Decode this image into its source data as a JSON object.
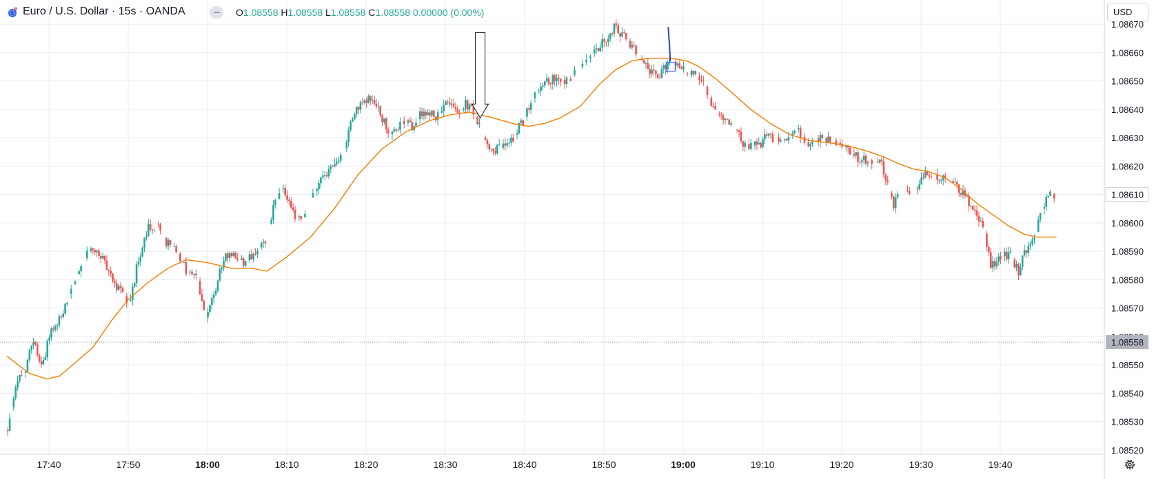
{
  "header": {
    "symbol_title": "Euro / U.S. Dollar · 15s · OANDA",
    "ohlc": {
      "o_key": "O",
      "o": "1.08558",
      "h_key": "H",
      "h": "1.08558",
      "l_key": "L",
      "l": "1.08558",
      "c_key": "C",
      "c": "1.08558",
      "change": "0.00000 (0.00%)"
    }
  },
  "toolbar": {
    "currency_label": "USD",
    "settings_icon": "gear-icon"
  },
  "colors": {
    "up": "#26a69a",
    "down": "#ef5350",
    "ma": "#f57c00",
    "grid": "#e8ebf1",
    "last_price_bg": "#b2b5be",
    "annotation_blue": "#2f3ed6"
  },
  "chart_data": {
    "type": "candlestick",
    "ylim": [
      1.085185,
      1.086785
    ],
    "y_ticks": [
      "1.08520",
      "1.08530",
      "1.08540",
      "1.08550",
      "1.08560",
      "1.08570",
      "1.08580",
      "1.08590",
      "1.08600",
      "1.08610",
      "1.08620",
      "1.08630",
      "1.08640",
      "1.08650",
      "1.08660",
      "1.08670"
    ],
    "x_ticks": [
      {
        "label": "17:40",
        "minute": -20,
        "bold": false
      },
      {
        "label": "17:50",
        "minute": -10,
        "bold": false
      },
      {
        "label": "18:00",
        "minute": 0,
        "bold": true
      },
      {
        "label": "18:10",
        "minute": 10,
        "bold": false
      },
      {
        "label": "18:20",
        "minute": 20,
        "bold": false
      },
      {
        "label": "18:30",
        "minute": 30,
        "bold": false
      },
      {
        "label": "18:40",
        "minute": 40,
        "bold": false
      },
      {
        "label": "18:50",
        "minute": 50,
        "bold": false
      },
      {
        "label": "19:00",
        "minute": 60,
        "bold": true
      },
      {
        "label": "19:10",
        "minute": 70,
        "bold": false
      },
      {
        "label": "19:20",
        "minute": 80,
        "bold": false
      },
      {
        "label": "19:30",
        "minute": 90,
        "bold": false
      },
      {
        "label": "19:40",
        "minute": 100,
        "bold": false
      }
    ],
    "xlim_minutes": [
      -25.3,
      107.1
    ],
    "price_path": [
      [
        -25.2,
        1.08527
      ],
      [
        -24.2,
        1.08543
      ],
      [
        -23.0,
        1.08548
      ],
      [
        -22.0,
        1.08558
      ],
      [
        -20.8,
        1.08549
      ],
      [
        -19.8,
        1.08562
      ],
      [
        -18.5,
        1.08567
      ],
      [
        -17.6,
        1.08574
      ],
      [
        -16.3,
        1.08583
      ],
      [
        -15.0,
        1.0859
      ],
      [
        -13.4,
        1.08588
      ],
      [
        -12.3,
        1.08582
      ],
      [
        -11.0,
        1.08576
      ],
      [
        -9.8,
        1.08572
      ],
      [
        -8.7,
        1.08587
      ],
      [
        -7.5,
        1.08598
      ],
      [
        -6.3,
        1.086
      ],
      [
        -5.2,
        1.08593
      ],
      [
        -4.0,
        1.08591
      ],
      [
        -2.7,
        1.08583
      ],
      [
        -1.3,
        1.08581
      ],
      [
        -0.3,
        1.08566
      ],
      [
        0.8,
        1.08574
      ],
      [
        2.0,
        1.08587
      ],
      [
        3.3,
        1.0859
      ],
      [
        4.5,
        1.08585
      ],
      [
        6.0,
        1.0859
      ],
      [
        7.2,
        1.08593
      ],
      [
        8.2,
        1.08604
      ],
      [
        9.3,
        1.08612
      ],
      [
        10.6,
        1.08605
      ],
      [
        11.8,
        1.086
      ],
      [
        12.8,
        1.08608
      ],
      [
        14.2,
        1.08614
      ],
      [
        15.7,
        1.08621
      ],
      [
        17.2,
        1.08625
      ],
      [
        18.2,
        1.08637
      ],
      [
        19.4,
        1.08642
      ],
      [
        20.8,
        1.08645
      ],
      [
        22.0,
        1.08637
      ],
      [
        23.0,
        1.08631
      ],
      [
        24.5,
        1.08636
      ],
      [
        26.0,
        1.08634
      ],
      [
        27.3,
        1.0864
      ],
      [
        28.8,
        1.08637
      ],
      [
        30.2,
        1.08642
      ],
      [
        31.6,
        1.08638
      ],
      [
        32.6,
        1.08642
      ],
      [
        33.6,
        1.08639
      ],
      [
        34.5,
        1.08632
      ],
      [
        35.3,
        1.08627
      ],
      [
        36.5,
        1.08626
      ],
      [
        37.8,
        1.08627
      ],
      [
        38.8,
        1.08631
      ],
      [
        40.0,
        1.08637
      ],
      [
        41.2,
        1.08645
      ],
      [
        42.5,
        1.0865
      ],
      [
        44.0,
        1.08651
      ],
      [
        45.3,
        1.0865
      ],
      [
        46.7,
        1.08654
      ],
      [
        48.0,
        1.08658
      ],
      [
        49.3,
        1.08662
      ],
      [
        50.5,
        1.08666
      ],
      [
        51.3,
        1.08669
      ],
      [
        52.3,
        1.08666
      ],
      [
        53.5,
        1.08663
      ],
      [
        54.5,
        1.08658
      ],
      [
        55.5,
        1.08655
      ],
      [
        56.7,
        1.08651
      ],
      [
        58.0,
        1.08656
      ],
      [
        59.0,
        1.08657
      ],
      [
        60.5,
        1.08652
      ],
      [
        61.7,
        1.08652
      ],
      [
        62.8,
        1.08648
      ],
      [
        63.8,
        1.0864
      ],
      [
        65.0,
        1.08636
      ],
      [
        66.3,
        1.08634
      ],
      [
        67.6,
        1.08628
      ],
      [
        69.2,
        1.08627
      ],
      [
        70.5,
        1.0863
      ],
      [
        71.8,
        1.0863
      ],
      [
        73.0,
        1.08629
      ],
      [
        74.3,
        1.08633
      ],
      [
        75.7,
        1.08628
      ],
      [
        77.0,
        1.0863
      ],
      [
        78.5,
        1.0863
      ],
      [
        79.7,
        1.08628
      ],
      [
        81.0,
        1.08625
      ],
      [
        82.3,
        1.08622
      ],
      [
        83.8,
        1.08622
      ],
      [
        85.0,
        1.08621
      ],
      [
        86.5,
        1.08606
      ],
      [
        87.6,
        1.08611
      ],
      [
        89.3,
        1.08612
      ],
      [
        90.5,
        1.08618
      ],
      [
        91.7,
        1.08617
      ],
      [
        93.3,
        1.08616
      ],
      [
        94.5,
        1.08613
      ],
      [
        95.5,
        1.0861
      ],
      [
        96.8,
        1.08603
      ],
      [
        98.0,
        1.08597
      ],
      [
        98.8,
        1.08584
      ],
      [
        100.0,
        1.08588
      ],
      [
        101.2,
        1.08589
      ],
      [
        102.3,
        1.08583
      ],
      [
        103.2,
        1.0859
      ],
      [
        104.2,
        1.08593
      ],
      [
        105.3,
        1.08605
      ],
      [
        106.2,
        1.08611
      ],
      [
        107.0,
        1.08609
      ]
    ],
    "moving_average": [
      [
        -25.3,
        1.08553
      ],
      [
        -22.5,
        1.08547
      ],
      [
        -20.3,
        1.08545
      ],
      [
        -18.7,
        1.08546
      ],
      [
        -17.0,
        1.0855
      ],
      [
        -14.5,
        1.08556
      ],
      [
        -12.0,
        1.08566
      ],
      [
        -10.0,
        1.08573
      ],
      [
        -7.5,
        1.08579
      ],
      [
        -5.0,
        1.08584
      ],
      [
        -2.7,
        1.08587
      ],
      [
        0,
        1.08586
      ],
      [
        3.0,
        1.08584
      ],
      [
        5.5,
        1.08584
      ],
      [
        7.5,
        1.08583
      ],
      [
        10.0,
        1.08588
      ],
      [
        13.0,
        1.08595
      ],
      [
        16.0,
        1.08605
      ],
      [
        19.0,
        1.08617
      ],
      [
        22.0,
        1.08626
      ],
      [
        25.0,
        1.08632
      ],
      [
        28.0,
        1.08636
      ],
      [
        30.5,
        1.08638
      ],
      [
        33.0,
        1.08639
      ],
      [
        36.0,
        1.08637
      ],
      [
        38.5,
        1.08635
      ],
      [
        40.5,
        1.08634
      ],
      [
        42.5,
        1.08635
      ],
      [
        44.5,
        1.08637
      ],
      [
        47.0,
        1.08641
      ],
      [
        49.5,
        1.08649
      ],
      [
        51.5,
        1.08654
      ],
      [
        53.5,
        1.08657
      ],
      [
        55.5,
        1.08658
      ],
      [
        58.5,
        1.08658
      ],
      [
        60.5,
        1.08657
      ],
      [
        62.0,
        1.08655
      ],
      [
        64.0,
        1.08651
      ],
      [
        66.5,
        1.08645
      ],
      [
        68.5,
        1.0864
      ],
      [
        71.0,
        1.08635
      ],
      [
        73.5,
        1.08631
      ],
      [
        76.0,
        1.08629
      ],
      [
        79.0,
        1.08628
      ],
      [
        81.0,
        1.08627
      ],
      [
        83.5,
        1.08625
      ],
      [
        85.5,
        1.08623
      ],
      [
        87.0,
        1.08621
      ],
      [
        89.0,
        1.08619
      ],
      [
        91.0,
        1.08618
      ],
      [
        93.0,
        1.08616
      ],
      [
        95.0,
        1.08612
      ],
      [
        97.0,
        1.08607
      ],
      [
        99.0,
        1.08603
      ],
      [
        101.0,
        1.08599
      ],
      [
        103.0,
        1.08596
      ],
      [
        104.5,
        1.08595
      ],
      [
        106.0,
        1.08595
      ],
      [
        107.1,
        1.08595
      ]
    ],
    "last_price": {
      "value": "1.08558",
      "price": 1.08558
    },
    "current_price_label": {
      "value": "1.08610",
      "price": 1.0861
    },
    "arrow_annotation": {
      "minute": 34.4,
      "top_price": 1.08667,
      "tip_price": 1.08637
    },
    "drawing_annotation": {
      "minute": 58.2,
      "price_top": 1.08669,
      "price_bottom": 1.08657
    }
  }
}
